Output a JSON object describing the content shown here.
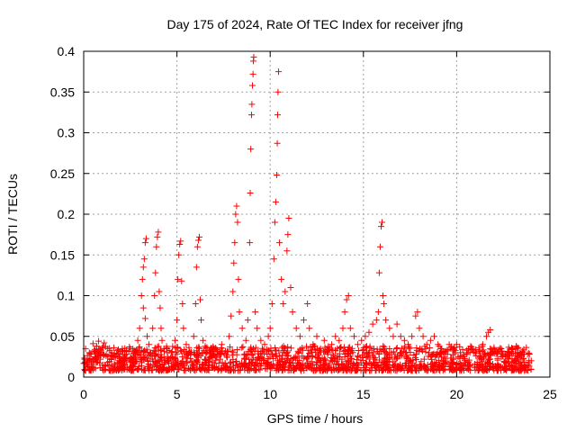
{
  "chart_data": {
    "type": "scatter",
    "title": "Day 175 of 2024, Rate Of TEC Index for receiver jfng",
    "xlabel": "GPS time / hours",
    "ylabel": "ROTI / TECUs",
    "xlim": [
      0,
      25
    ],
    "ylim": [
      0,
      0.4
    ],
    "xticks": [
      0,
      5,
      10,
      15,
      20,
      25
    ],
    "xtick_labels": [
      "0",
      "5",
      "10",
      "15",
      "20",
      "25"
    ],
    "yticks": [
      0,
      0.05,
      0.1,
      0.15,
      0.2,
      0.25,
      0.3,
      0.35,
      0.4
    ],
    "ytick_labels": [
      "0",
      "0.05",
      "0.1",
      "0.15",
      "0.2",
      "0.25",
      "0.3",
      "0.35",
      "0.4"
    ],
    "grid": true,
    "marker": "+",
    "color": "#ff0000",
    "series": [
      {
        "name": "ROTI",
        "points": [
          [
            0.05,
            0.022
          ],
          [
            0.1,
            0.035
          ],
          [
            0.2,
            0.018
          ],
          [
            0.3,
            0.03
          ],
          [
            0.4,
            0.028
          ],
          [
            0.5,
            0.041
          ],
          [
            0.6,
            0.025
          ],
          [
            0.7,
            0.038
          ],
          [
            0.8,
            0.044
          ],
          [
            0.9,
            0.022
          ],
          [
            1.0,
            0.036
          ],
          [
            1.1,
            0.042
          ],
          [
            1.2,
            0.026
          ],
          [
            1.3,
            0.015
          ],
          [
            1.5,
            0.03
          ],
          [
            1.7,
            0.024
          ],
          [
            1.9,
            0.02
          ],
          [
            2.1,
            0.032
          ],
          [
            2.3,
            0.028
          ],
          [
            2.5,
            0.035
          ],
          [
            2.7,
            0.03
          ],
          [
            2.9,
            0.045
          ],
          [
            3.0,
            0.06
          ],
          [
            3.1,
            0.1
          ],
          [
            3.15,
            0.12
          ],
          [
            3.2,
            0.135
          ],
          [
            3.25,
            0.145
          ],
          [
            3.3,
            0.165
          ],
          [
            3.35,
            0.17
          ],
          [
            3.2,
            0.085
          ],
          [
            3.3,
            0.072
          ],
          [
            3.4,
            0.05
          ],
          [
            3.5,
            0.04
          ],
          [
            3.6,
            0.03
          ],
          [
            3.7,
            0.06
          ],
          [
            3.8,
            0.1
          ],
          [
            3.85,
            0.128
          ],
          [
            3.9,
            0.16
          ],
          [
            3.95,
            0.172
          ],
          [
            4.0,
            0.178
          ],
          [
            4.05,
            0.105
          ],
          [
            4.1,
            0.085
          ],
          [
            4.15,
            0.06
          ],
          [
            4.2,
            0.045
          ],
          [
            4.3,
            0.035
          ],
          [
            4.5,
            0.025
          ],
          [
            4.7,
            0.03
          ],
          [
            4.9,
            0.045
          ],
          [
            5.0,
            0.07
          ],
          [
            5.05,
            0.12
          ],
          [
            5.1,
            0.15
          ],
          [
            5.15,
            0.163
          ],
          [
            5.2,
            0.167
          ],
          [
            5.25,
            0.118
          ],
          [
            5.3,
            0.09
          ],
          [
            5.35,
            0.06
          ],
          [
            5.5,
            0.04
          ],
          [
            5.7,
            0.03
          ],
          [
            5.9,
            0.05
          ],
          [
            6.0,
            0.09
          ],
          [
            6.05,
            0.135
          ],
          [
            6.1,
            0.16
          ],
          [
            6.15,
            0.168
          ],
          [
            6.2,
            0.172
          ],
          [
            6.25,
            0.095
          ],
          [
            6.3,
            0.07
          ],
          [
            6.4,
            0.045
          ],
          [
            6.6,
            0.03
          ],
          [
            6.8,
            0.025
          ],
          [
            7.0,
            0.035
          ],
          [
            7.2,
            0.028
          ],
          [
            7.4,
            0.04
          ],
          [
            7.6,
            0.032
          ],
          [
            7.8,
            0.05
          ],
          [
            7.9,
            0.075
          ],
          [
            8.0,
            0.105
          ],
          [
            8.05,
            0.14
          ],
          [
            8.1,
            0.165
          ],
          [
            8.15,
            0.2
          ],
          [
            8.2,
            0.21
          ],
          [
            8.25,
            0.19
          ],
          [
            8.3,
            0.12
          ],
          [
            8.35,
            0.08
          ],
          [
            8.5,
            0.06
          ],
          [
            8.7,
            0.045
          ],
          [
            8.8,
            0.07
          ],
          [
            8.9,
            0.165
          ],
          [
            8.93,
            0.226
          ],
          [
            8.96,
            0.28
          ],
          [
            9.0,
            0.322
          ],
          [
            9.02,
            0.335
          ],
          [
            9.05,
            0.358
          ],
          [
            9.08,
            0.372
          ],
          [
            9.1,
            0.388
          ],
          [
            9.12,
            0.393
          ],
          [
            9.2,
            0.08
          ],
          [
            9.3,
            0.06
          ],
          [
            9.5,
            0.045
          ],
          [
            9.7,
            0.04
          ],
          [
            9.9,
            0.05
          ],
          [
            10.0,
            0.06
          ],
          [
            10.1,
            0.09
          ],
          [
            10.2,
            0.145
          ],
          [
            10.25,
            0.19
          ],
          [
            10.3,
            0.215
          ],
          [
            10.35,
            0.248
          ],
          [
            10.38,
            0.287
          ],
          [
            10.4,
            0.322
          ],
          [
            10.42,
            0.35
          ],
          [
            10.45,
            0.375
          ],
          [
            10.5,
            0.165
          ],
          [
            10.6,
            0.12
          ],
          [
            10.7,
            0.09
          ],
          [
            10.8,
            0.105
          ],
          [
            10.9,
            0.155
          ],
          [
            10.95,
            0.175
          ],
          [
            11.0,
            0.195
          ],
          [
            11.1,
            0.11
          ],
          [
            11.2,
            0.08
          ],
          [
            11.4,
            0.06
          ],
          [
            11.6,
            0.05
          ],
          [
            11.8,
            0.07
          ],
          [
            12.0,
            0.09
          ],
          [
            12.1,
            0.06
          ],
          [
            12.3,
            0.04
          ],
          [
            12.5,
            0.05
          ],
          [
            12.7,
            0.035
          ],
          [
            12.9,
            0.045
          ],
          [
            13.1,
            0.03
          ],
          [
            13.3,
            0.04
          ],
          [
            13.5,
            0.05
          ],
          [
            13.7,
            0.045
          ],
          [
            13.9,
            0.06
          ],
          [
            14.0,
            0.08
          ],
          [
            14.1,
            0.095
          ],
          [
            14.2,
            0.1
          ],
          [
            14.3,
            0.06
          ],
          [
            14.5,
            0.05
          ],
          [
            14.7,
            0.04
          ],
          [
            14.9,
            0.045
          ],
          [
            15.1,
            0.05
          ],
          [
            15.3,
            0.055
          ],
          [
            15.5,
            0.065
          ],
          [
            15.7,
            0.07
          ],
          [
            15.8,
            0.08
          ],
          [
            15.85,
            0.128
          ],
          [
            15.9,
            0.16
          ],
          [
            15.95,
            0.185
          ],
          [
            16.0,
            0.19
          ],
          [
            16.05,
            0.1
          ],
          [
            16.1,
            0.09
          ],
          [
            16.2,
            0.07
          ],
          [
            16.4,
            0.06
          ],
          [
            16.6,
            0.05
          ],
          [
            16.8,
            0.065
          ],
          [
            17.0,
            0.05
          ],
          [
            17.2,
            0.045
          ],
          [
            17.4,
            0.04
          ],
          [
            17.6,
            0.05
          ],
          [
            17.8,
            0.075
          ],
          [
            17.9,
            0.08
          ],
          [
            18.0,
            0.06
          ],
          [
            18.2,
            0.05
          ],
          [
            18.4,
            0.04
          ],
          [
            18.6,
            0.045
          ],
          [
            18.8,
            0.05
          ],
          [
            19.0,
            0.04
          ],
          [
            19.2,
            0.035
          ],
          [
            19.4,
            0.03
          ],
          [
            19.6,
            0.04
          ],
          [
            19.8,
            0.035
          ],
          [
            20.0,
            0.04
          ],
          [
            20.2,
            0.03
          ],
          [
            20.4,
            0.025
          ],
          [
            20.6,
            0.03
          ],
          [
            20.8,
            0.035
          ],
          [
            21.0,
            0.03
          ],
          [
            21.2,
            0.032
          ],
          [
            21.4,
            0.04
          ],
          [
            21.6,
            0.05
          ],
          [
            21.7,
            0.055
          ],
          [
            21.8,
            0.058
          ],
          [
            22.0,
            0.035
          ],
          [
            22.2,
            0.03
          ],
          [
            22.4,
            0.025
          ],
          [
            22.6,
            0.028
          ],
          [
            22.8,
            0.03
          ],
          [
            23.0,
            0.035
          ],
          [
            23.2,
            0.038
          ],
          [
            23.4,
            0.03
          ],
          [
            23.6,
            0.034
          ],
          [
            23.8,
            0.028
          ],
          [
            24.0,
            0.02
          ]
        ]
      }
    ]
  }
}
